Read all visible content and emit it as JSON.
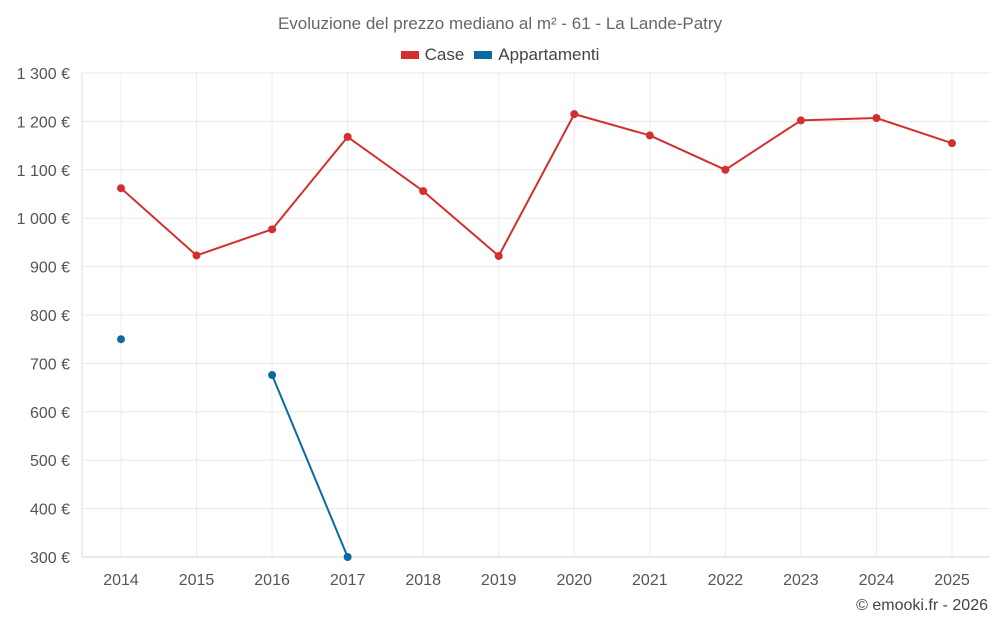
{
  "chart_data": {
    "type": "line",
    "title": "Evoluzione del prezzo mediano al m² - 61 - La Lande-Patry",
    "categories": [
      "2014",
      "2015",
      "2016",
      "2017",
      "2018",
      "2019",
      "2020",
      "2021",
      "2022",
      "2023",
      "2024",
      "2025"
    ],
    "y_ticks": [
      "300 €",
      "400 €",
      "500 €",
      "600 €",
      "700 €",
      "800 €",
      "900 €",
      "1 000 €",
      "1 100 €",
      "1 200 €",
      "1 300 €"
    ],
    "ylim": [
      300,
      1300
    ],
    "grid": true,
    "legend_position": "top-center",
    "series": [
      {
        "name": "Case",
        "color": "#d32f2f",
        "values": [
          1062,
          923,
          977,
          1168,
          1056,
          922,
          1215,
          1171,
          1100,
          1202,
          1207,
          1155
        ]
      },
      {
        "name": "Appartamenti",
        "color": "#0a6aa1",
        "values": [
          750,
          null,
          676,
          300,
          null,
          null,
          null,
          null,
          null,
          null,
          null,
          null
        ]
      }
    ]
  },
  "credit": "© emooki.fr - 2026"
}
